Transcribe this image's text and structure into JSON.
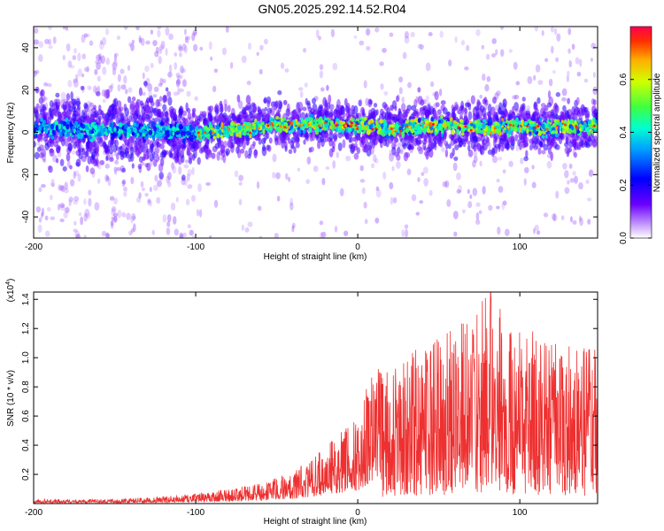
{
  "figure": {
    "title": "GN05.2025.292.14.52.R04"
  },
  "chart_data": [
    {
      "type": "heatmap",
      "title": "GN05.2025.292.14.52.R04",
      "xlabel": "Height of straight line (km)",
      "ylabel": "Frequency (Hz)",
      "xlim": [
        -200,
        148
      ],
      "ylim": [
        -50,
        50
      ],
      "xticks": [
        -200,
        -100,
        0,
        100
      ],
      "yticks": [
        -40,
        -20,
        0,
        20,
        40
      ],
      "grid": false,
      "colorscale": "rainbow",
      "colors": {
        "low": "#ffffff",
        "mid_low": "#6a00ff",
        "mid": "#00ffc0",
        "high": "#ff0000"
      },
      "band_center_hz": [
        [
          -200,
          2
        ],
        [
          -150,
          1
        ],
        [
          -100,
          0
        ],
        [
          -80,
          1
        ],
        [
          -60,
          2
        ],
        [
          -50,
          4
        ],
        [
          -40,
          3
        ],
        [
          -20,
          4
        ],
        [
          0,
          3
        ],
        [
          20,
          1
        ],
        [
          40,
          3
        ],
        [
          60,
          3
        ],
        [
          80,
          2
        ],
        [
          100,
          3
        ],
        [
          120,
          2
        ],
        [
          148,
          3
        ]
      ],
      "colorbar": {
        "label": "Normalized spectral amplitude",
        "range": [
          0,
          0.8
        ],
        "ticks": [
          0.0,
          0.2,
          0.4,
          0.6
        ]
      }
    },
    {
      "type": "line",
      "xlabel": "Height of straight line (km)",
      "ylabel": "SNR (10 * v/v)",
      "multiplier": "(x10",
      "multiplier_exp": "4",
      "multiplier_close": ")",
      "xlim": [
        -200,
        148
      ],
      "ylim": [
        0,
        1.45
      ],
      "xticks": [
        -200,
        -100,
        0,
        100
      ],
      "yticks": [
        0.2,
        0.4,
        0.6,
        0.8,
        1.0,
        1.2,
        1.4
      ],
      "color": "#ee3030",
      "envelope_x": [
        -200,
        -150,
        -110,
        -100,
        -80,
        -60,
        -50,
        -40,
        -30,
        -20,
        -10,
        0,
        10,
        20,
        40,
        60,
        80,
        100,
        120,
        148
      ],
      "envelope_max": [
        0.03,
        0.03,
        0.06,
        0.07,
        0.1,
        0.14,
        0.18,
        0.22,
        0.3,
        0.4,
        0.5,
        0.6,
        0.95,
        0.9,
        1.1,
        1.2,
        1.45,
        1.2,
        1.15,
        1.05
      ],
      "peak": {
        "x": 82,
        "y": 1.45
      }
    }
  ]
}
